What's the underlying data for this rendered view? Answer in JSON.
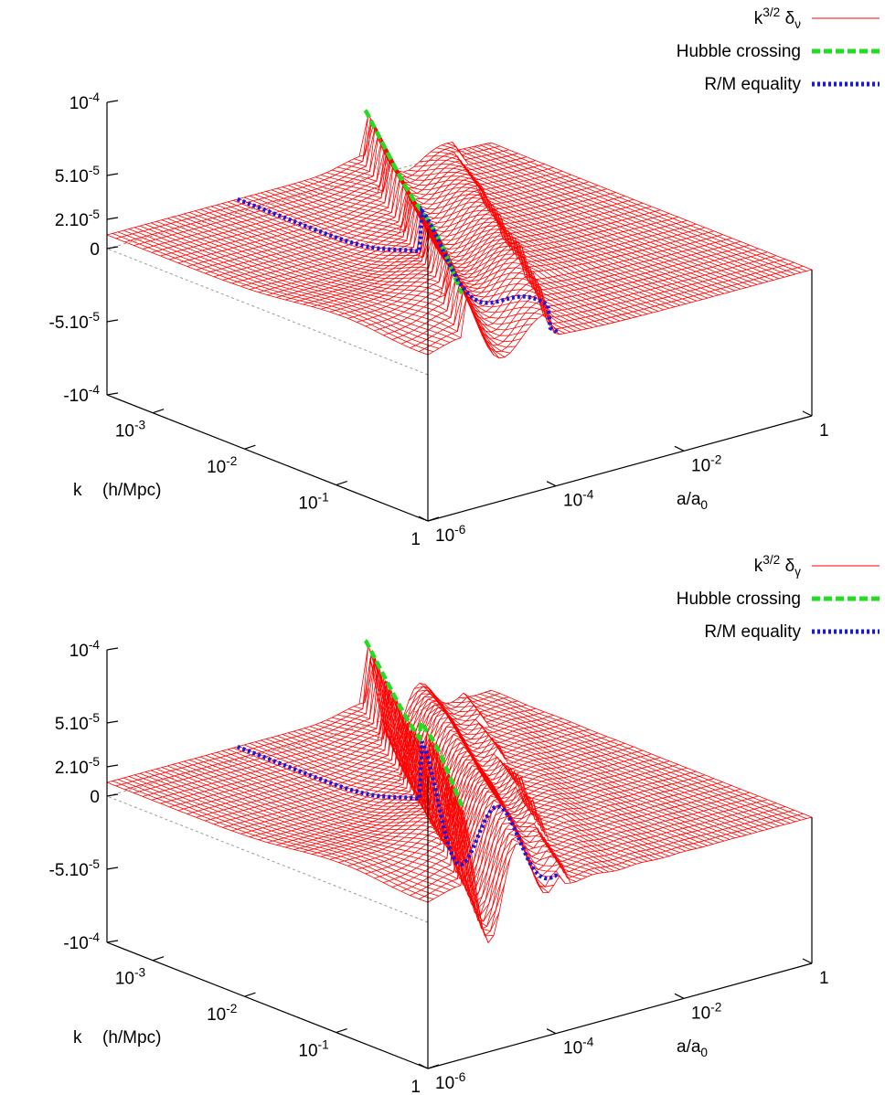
{
  "colors": {
    "surface": "#ff0000",
    "hubble": "#22dd22",
    "equality": "#1a1adf",
    "axis": "#000000",
    "baseline": "#999999"
  },
  "chart_data": [
    {
      "type": "surface",
      "xlabel": {
        "base": "a/a",
        "sub": "0"
      },
      "klabel": "k",
      "kunit": "(h/Mpc)",
      "z_ticks": [
        {
          "value": 0.0001,
          "base": "10",
          "sup": "-4",
          "sub": ""
        },
        {
          "value": 5e-05,
          "base": "5.10",
          "sup": "-5",
          "sub": ""
        },
        {
          "value": 2e-05,
          "base": "2.10",
          "sup": "-5",
          "sub": ""
        },
        {
          "value": 0,
          "base": "0",
          "sup": "",
          "sub": ""
        },
        {
          "value": -5e-05,
          "base": "-5.10",
          "sup": "-5",
          "sub": ""
        },
        {
          "value": -0.0001,
          "base": "-10",
          "sup": "-4",
          "sub": ""
        }
      ],
      "a_ticks": [
        {
          "value": 1e-06,
          "base": "10",
          "sup": "-6"
        },
        {
          "value": 0.0001,
          "base": "10",
          "sup": "-4"
        },
        {
          "value": 0.01,
          "base": "10",
          "sup": "-2"
        },
        {
          "value": 1,
          "base": "1",
          "sup": ""
        }
      ],
      "k_ticks": [
        {
          "value": 0.001,
          "base": "10",
          "sup": "-3"
        },
        {
          "value": 0.01,
          "base": "10",
          "sup": "-2"
        },
        {
          "value": 0.1,
          "base": "10",
          "sup": "-1"
        },
        {
          "value": 1,
          "base": "1",
          "sup": ""
        }
      ],
      "zlim": [
        -0.0001,
        0.0001
      ],
      "a_range": [
        1e-06,
        1
      ],
      "k_range": [
        0.0003,
        1
      ],
      "species": "nu",
      "legend_position": "top-right",
      "legend": [
        {
          "base": "k",
          "sup": "3/2",
          "greek": "δ",
          "sub": "ν",
          "style": "thin",
          "color_key": "surface"
        },
        {
          "label": "Hubble crossing",
          "style": "dashed",
          "color_key": "hubble"
        },
        {
          "label": "R/M equality",
          "style": "dotted",
          "color_key": "equality"
        }
      ]
    },
    {
      "type": "surface",
      "xlabel": {
        "base": "a/a",
        "sub": "0"
      },
      "klabel": "k",
      "kunit": "(h/Mpc)",
      "z_ticks": [
        {
          "value": 0.0001,
          "base": "10",
          "sup": "-4",
          "sub": ""
        },
        {
          "value": 5e-05,
          "base": "5.10",
          "sup": "-5",
          "sub": ""
        },
        {
          "value": 2e-05,
          "base": "2.10",
          "sup": "-5",
          "sub": ""
        },
        {
          "value": 0,
          "base": "0",
          "sup": "",
          "sub": ""
        },
        {
          "value": -5e-05,
          "base": "-5.10",
          "sup": "-5",
          "sub": ""
        },
        {
          "value": -0.0001,
          "base": "-10",
          "sup": "-4",
          "sub": ""
        }
      ],
      "a_ticks": [
        {
          "value": 1e-06,
          "base": "10",
          "sup": "-6"
        },
        {
          "value": 0.0001,
          "base": "10",
          "sup": "-4"
        },
        {
          "value": 0.01,
          "base": "10",
          "sup": "-2"
        },
        {
          "value": 1,
          "base": "1",
          "sup": ""
        }
      ],
      "k_ticks": [
        {
          "value": 0.001,
          "base": "10",
          "sup": "-3"
        },
        {
          "value": 0.01,
          "base": "10",
          "sup": "-2"
        },
        {
          "value": 0.1,
          "base": "10",
          "sup": "-1"
        },
        {
          "value": 1,
          "base": "1",
          "sup": ""
        }
      ],
      "zlim": [
        -0.0001,
        0.0001
      ],
      "a_range": [
        1e-06,
        1
      ],
      "k_range": [
        0.0003,
        1
      ],
      "species": "gamma",
      "legend_position": "top-right",
      "legend": [
        {
          "base": "k",
          "sup": "3/2",
          "greek": "δ",
          "sub": "γ",
          "style": "thin",
          "color_key": "surface"
        },
        {
          "label": "Hubble crossing",
          "style": "dashed",
          "color_key": "hubble"
        },
        {
          "label": "R/M equality",
          "style": "dotted",
          "color_key": "equality"
        }
      ]
    }
  ]
}
